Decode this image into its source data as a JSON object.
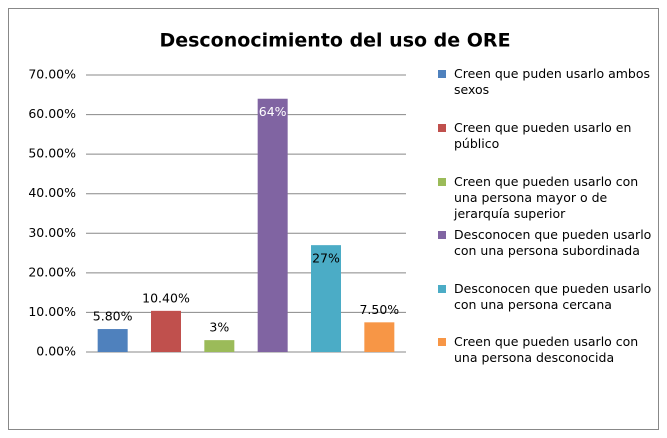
{
  "chart_data": {
    "type": "bar",
    "title": "Desconocimiento del uso de ORE",
    "categories": [
      "Creen que puden usarlo ambos sexos",
      "Creen que pueden usarlo en público",
      "Creen que pueden usarlo con una persona mayor o de jerarquía superior",
      "Desconocen que pueden usarlo con una persona subordinada",
      "Desconocen que pueden usarlo con una persona cercana",
      "Creen que pueden usarlo con una persona desconocida"
    ],
    "values": [
      5.8,
      10.4,
      3,
      64,
      27,
      7.5
    ],
    "value_labels": [
      "5.80%",
      "10.40%",
      "3%",
      "64%",
      "27%",
      "7.50%"
    ],
    "colors": [
      "#4f81bd",
      "#c0504d",
      "#9bbb59",
      "#8064a2",
      "#4bacc6",
      "#f79646"
    ],
    "ylim": [
      0,
      70
    ],
    "yticks": [
      {
        "value": 0,
        "label": "0.00%"
      },
      {
        "value": 10,
        "label": "10.00%"
      },
      {
        "value": 20,
        "label": "20.00%"
      },
      {
        "value": 30,
        "label": "30.00%"
      },
      {
        "value": 40,
        "label": "40.00%"
      },
      {
        "value": 50,
        "label": "50.00%"
      },
      {
        "value": 60,
        "label": "60.00%"
      },
      {
        "value": 70,
        "label": "70.00%"
      }
    ],
    "grid": true,
    "legend": "right"
  }
}
